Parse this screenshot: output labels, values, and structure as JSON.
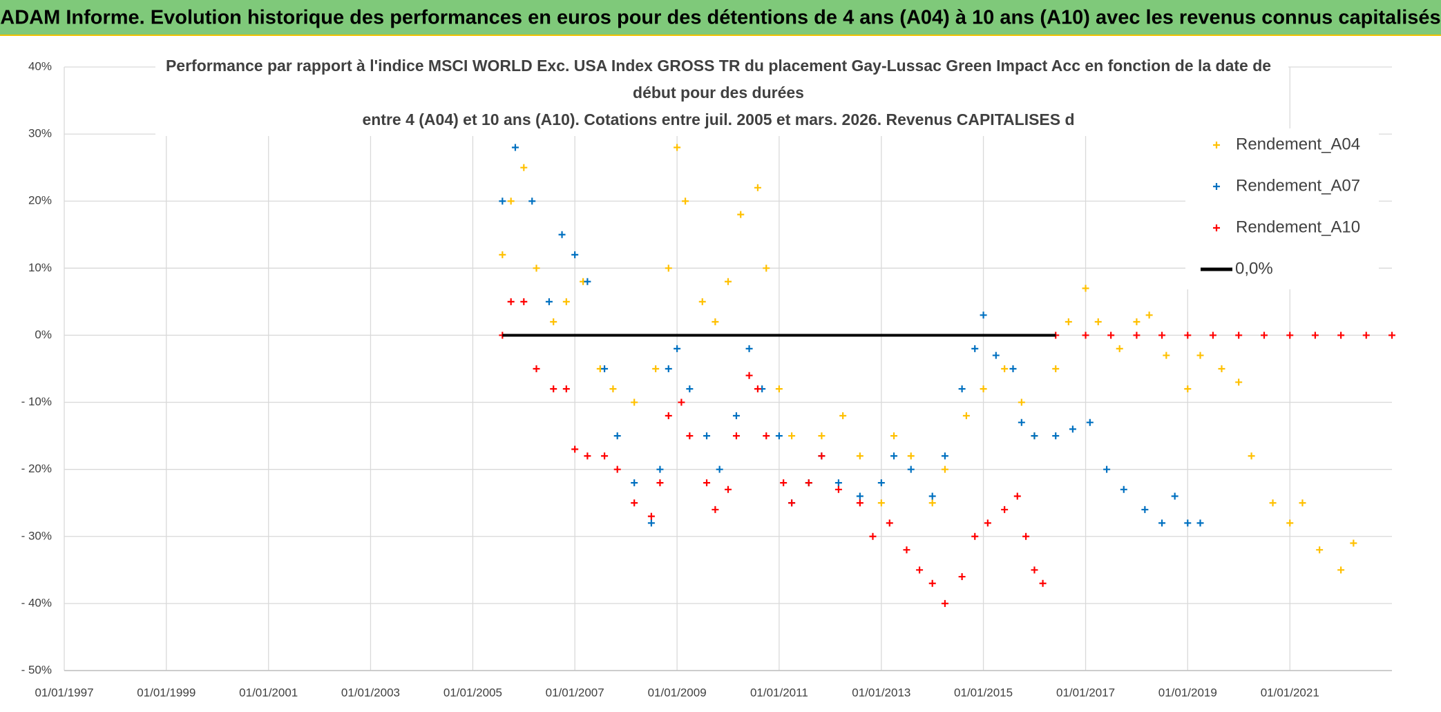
{
  "chart_data": {
    "type": "scatter",
    "header": "ADAM Informe. Evolution historique des performances en euros pour des détentions de 4 ans (A04) à 10 ans (A10) avec les revenus connus capitalisés",
    "title_lines": [
      "Performance par rapport à l'indice MSCI WORLD Exc. USA Index GROSS TR  du placement Gay-Lussac Green Impact Acc en fonction de la date de",
      "début pour des durées",
      "entre 4 (A04) et 10 ans (A10). Cotations entre juil. 2005 et mars. 2026. Revenus CAPITALISES d"
    ],
    "xlim": [
      "1997-01-01",
      "2023-01-01"
    ],
    "xticks": [
      {
        "value": "1997-01-01",
        "label": "01/01/1997"
      },
      {
        "value": "1999-01-01",
        "label": "01/01/1999"
      },
      {
        "value": "2001-01-01",
        "label": "01/01/2001"
      },
      {
        "value": "2003-01-01",
        "label": "01/01/2003"
      },
      {
        "value": "2005-01-01",
        "label": "01/01/2005"
      },
      {
        "value": "2007-01-01",
        "label": "01/01/2007"
      },
      {
        "value": "2009-01-01",
        "label": "01/01/2009"
      },
      {
        "value": "2011-01-01",
        "label": "01/01/2011"
      },
      {
        "value": "2013-01-01",
        "label": "01/01/2013"
      },
      {
        "value": "2015-01-01",
        "label": "01/01/2015"
      },
      {
        "value": "2017-01-01",
        "label": "01/01/2017"
      },
      {
        "value": "2019-01-01",
        "label": "01/01/2019"
      },
      {
        "value": "2021-01-01",
        "label": "01/01/2021"
      }
    ],
    "ylim": [
      -50,
      40
    ],
    "yticks": [
      {
        "value": 40,
        "label": "40%"
      },
      {
        "value": 30,
        "label": "30%"
      },
      {
        "value": 20,
        "label": "20%"
      },
      {
        "value": 10,
        "label": "10%"
      },
      {
        "value": 0,
        "label": "0%"
      },
      {
        "value": -10,
        "label": "- 10%"
      },
      {
        "value": -20,
        "label": "- 20%"
      },
      {
        "value": -30,
        "label": "- 30%"
      },
      {
        "value": -40,
        "label": "- 40%"
      },
      {
        "value": -50,
        "label": "- 50%"
      }
    ],
    "grid": true,
    "legend": "upper right",
    "series": [
      {
        "name": "Rendement_A04",
        "color": "#ffc000",
        "style": "points",
        "x": [
          "2005-08-01",
          "2005-10-01",
          "2006-01-01",
          "2006-04-01",
          "2006-08-01",
          "2006-11-01",
          "2007-03-01",
          "2007-07-01",
          "2007-10-01",
          "2008-03-01",
          "2008-08-01",
          "2008-11-01",
          "2009-01-01",
          "2009-03-01",
          "2009-07-01",
          "2009-10-01",
          "2010-01-01",
          "2010-04-01",
          "2010-08-01",
          "2010-10-01",
          "2011-01-01",
          "2011-04-01",
          "2011-08-01",
          "2011-11-01",
          "2012-04-01",
          "2012-08-01",
          "2013-01-01",
          "2013-04-01",
          "2013-08-01",
          "2014-01-01",
          "2014-04-01",
          "2014-09-01",
          "2015-01-01",
          "2015-06-01",
          "2015-10-01",
          "2016-01-01",
          "2016-06-01",
          "2016-09-01",
          "2017-01-01",
          "2017-04-01",
          "2017-09-01",
          "2018-01-01",
          "2018-04-01",
          "2018-08-01",
          "2019-01-01",
          "2019-04-01",
          "2019-09-01",
          "2020-01-01",
          "2020-04-01",
          "2020-09-01",
          "2021-01-01",
          "2021-04-01",
          "2021-08-01",
          "2022-01-01",
          "2022-04-01"
        ],
        "values": [
          12,
          20,
          25,
          10,
          2,
          5,
          8,
          -5,
          -8,
          -10,
          -5,
          10,
          28,
          20,
          5,
          2,
          8,
          18,
          22,
          10,
          -8,
          -15,
          -22,
          -15,
          -12,
          -18,
          -25,
          -15,
          -18,
          -25,
          -20,
          -12,
          -8,
          -5,
          -10,
          -15,
          -5,
          2,
          7,
          2,
          -2,
          2,
          3,
          -3,
          -8,
          -3,
          -5,
          -7,
          -18,
          -25,
          -28,
          -25,
          -32,
          -35,
          -31
        ]
      },
      {
        "name": "Rendement_A07",
        "color": "#0070c0",
        "style": "points",
        "x": [
          "2005-08-01",
          "2005-11-01",
          "2006-03-01",
          "2006-07-01",
          "2006-10-01",
          "2007-01-01",
          "2007-04-01",
          "2007-08-01",
          "2007-11-01",
          "2008-03-01",
          "2008-07-01",
          "2008-09-01",
          "2008-11-01",
          "2009-01-01",
          "2009-04-01",
          "2009-08-01",
          "2009-11-01",
          "2010-03-01",
          "2010-06-01",
          "2010-09-01",
          "2011-01-01",
          "2011-04-01",
          "2011-08-01",
          "2011-11-01",
          "2012-03-01",
          "2012-08-01",
          "2013-01-01",
          "2013-04-01",
          "2013-08-01",
          "2014-01-01",
          "2014-04-01",
          "2014-08-01",
          "2014-11-01",
          "2015-01-01",
          "2015-04-01",
          "2015-08-01",
          "2015-10-01",
          "2016-01-01",
          "2016-06-01",
          "2016-10-01",
          "2017-02-01",
          "2017-06-01",
          "2017-10-01",
          "2018-03-01",
          "2018-07-01",
          "2018-10-01",
          "2019-01-01",
          "2019-04-01"
        ],
        "values": [
          20,
          28,
          20,
          5,
          15,
          12,
          8,
          -5,
          -15,
          -22,
          -28,
          -20,
          -5,
          -2,
          -8,
          -15,
          -20,
          -12,
          -2,
          -8,
          -15,
          -25,
          -22,
          -18,
          -22,
          -24,
          -22,
          -18,
          -20,
          -24,
          -18,
          -8,
          -2,
          3,
          -3,
          -5,
          -13,
          -15,
          -15,
          -14,
          -13,
          -20,
          -23,
          -26,
          -28,
          -24,
          -28,
          -28
        ]
      },
      {
        "name": "Rendement_A10",
        "color": "#ff0000",
        "style": "points",
        "x": [
          "2005-08-01",
          "2005-10-01",
          "2006-01-01",
          "2006-04-01",
          "2006-08-01",
          "2006-11-01",
          "2007-01-01",
          "2007-04-01",
          "2007-08-01",
          "2007-11-01",
          "2008-03-01",
          "2008-07-01",
          "2008-09-01",
          "2008-11-01",
          "2009-02-01",
          "2009-04-01",
          "2009-08-01",
          "2009-10-01",
          "2010-01-01",
          "2010-03-01",
          "2010-06-01",
          "2010-08-01",
          "2010-10-01",
          "2011-02-01",
          "2011-04-01",
          "2011-08-01",
          "2011-11-01",
          "2012-03-01",
          "2012-08-01",
          "2012-11-01",
          "2013-03-01",
          "2013-07-01",
          "2013-10-01",
          "2014-01-01",
          "2014-04-01",
          "2014-08-01",
          "2014-11-01",
          "2015-02-01",
          "2015-06-01",
          "2015-09-01",
          "2015-11-01",
          "2016-01-01",
          "2016-03-01",
          "2016-06-01",
          "2017-01-01",
          "2017-07-01",
          "2018-01-01",
          "2018-07-01",
          "2019-01-01",
          "2019-07-01",
          "2020-01-01",
          "2020-07-01",
          "2021-01-01",
          "2021-07-01",
          "2022-01-01",
          "2022-07-01",
          "2023-01-01"
        ],
        "values": [
          0,
          5,
          5,
          -5,
          -8,
          -8,
          -17,
          -18,
          -18,
          -20,
          -25,
          -27,
          -22,
          -12,
          -10,
          -15,
          -22,
          -26,
          -23,
          -15,
          -6,
          -8,
          -15,
          -22,
          -25,
          -22,
          -18,
          -23,
          -25,
          -30,
          -28,
          -32,
          -35,
          -37,
          -40,
          -36,
          -30,
          -28,
          -26,
          -24,
          -30,
          -35,
          -37,
          0,
          0,
          0,
          0,
          0,
          0,
          0,
          0,
          0,
          0,
          0,
          0,
          0,
          0
        ]
      },
      {
        "name": "0,0%",
        "color": "#000000",
        "style": "line",
        "x": [
          "2005-08-01",
          "2016-06-01"
        ],
        "values": [
          0,
          0
        ]
      }
    ]
  }
}
